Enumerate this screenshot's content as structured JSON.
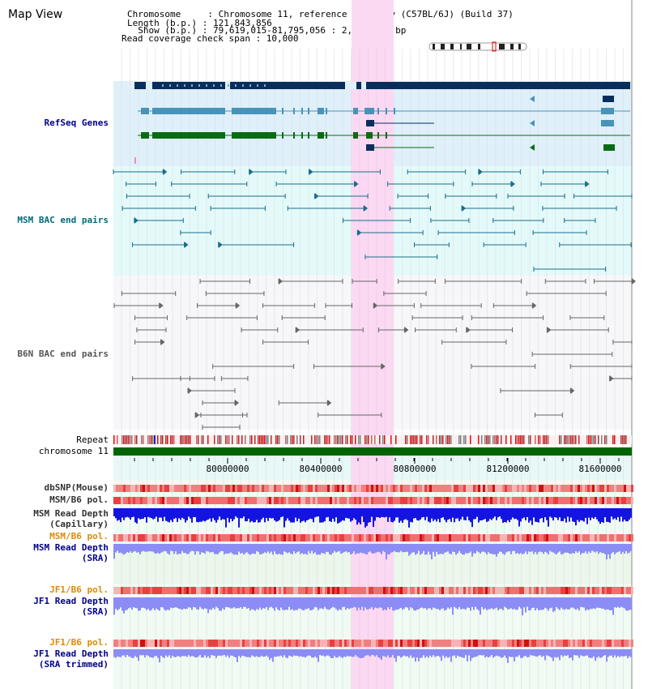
{
  "title": "Map View",
  "header": {
    "chromosome_line": "Chromosome     : Chromosome 11, reference assembly (C57BL/6J) (Build 37)",
    "length_line": "Length (b.p.) : 121,843,856",
    "show_line": "  Show (b.p.) : 79,619,015-81,795,056 : 2,176,042 bp",
    "coverage_line": "Read coverage check span : 10,000"
  },
  "tracks": {
    "refseq": "RefSeq Genes",
    "msm_bac": "MSM BAC end pairs",
    "b6n_bac": "B6N BAC end pairs",
    "repeat": "Repeat",
    "chromosome": "chromosome 11",
    "dbsnp": "dbSNP(Mouse)",
    "msm_b6_pol_1": "MSM/B6 pol.",
    "msm_depth_cap_1": "MSM Read Depth",
    "msm_depth_cap_2": "(Capillary)",
    "msm_b6_pol_2": "MSM/B6 pol.",
    "msm_depth_sra_1": "MSM Read Depth",
    "msm_depth_sra_2": "(SRA)",
    "jf1_b6_pol_1": "JF1/B6 pol.",
    "jf1_depth_sra_1": "JF1 Read Depth",
    "jf1_depth_sra_2": "(SRA)",
    "jf1_b6_pol_2": "JF1/B6 pol.",
    "jf1_depth_trim_1": "JF1 Read Depth",
    "jf1_depth_trim_2": "(SRA trimmed)"
  },
  "axis": {
    "ticks": [
      "80000000",
      "80400000",
      "80800000",
      "81200000",
      "81600000"
    ]
  },
  "colors": {
    "refseq_bg": "#dff0fa",
    "msm_bg": "#e4fafa",
    "highlight": "#fbd9f3",
    "gene_dark": "#0a2e5c",
    "gene_mid": "#4a92b8",
    "gene_green": "#0a6b14",
    "msm_pair": "#1b6d8a",
    "b6n_pair": "#666666",
    "chrom_bar": "#006400",
    "depth_msm_cap": "#1414e0",
    "depth_sra": "#8c8cf5",
    "pol": "#f06060"
  }
}
